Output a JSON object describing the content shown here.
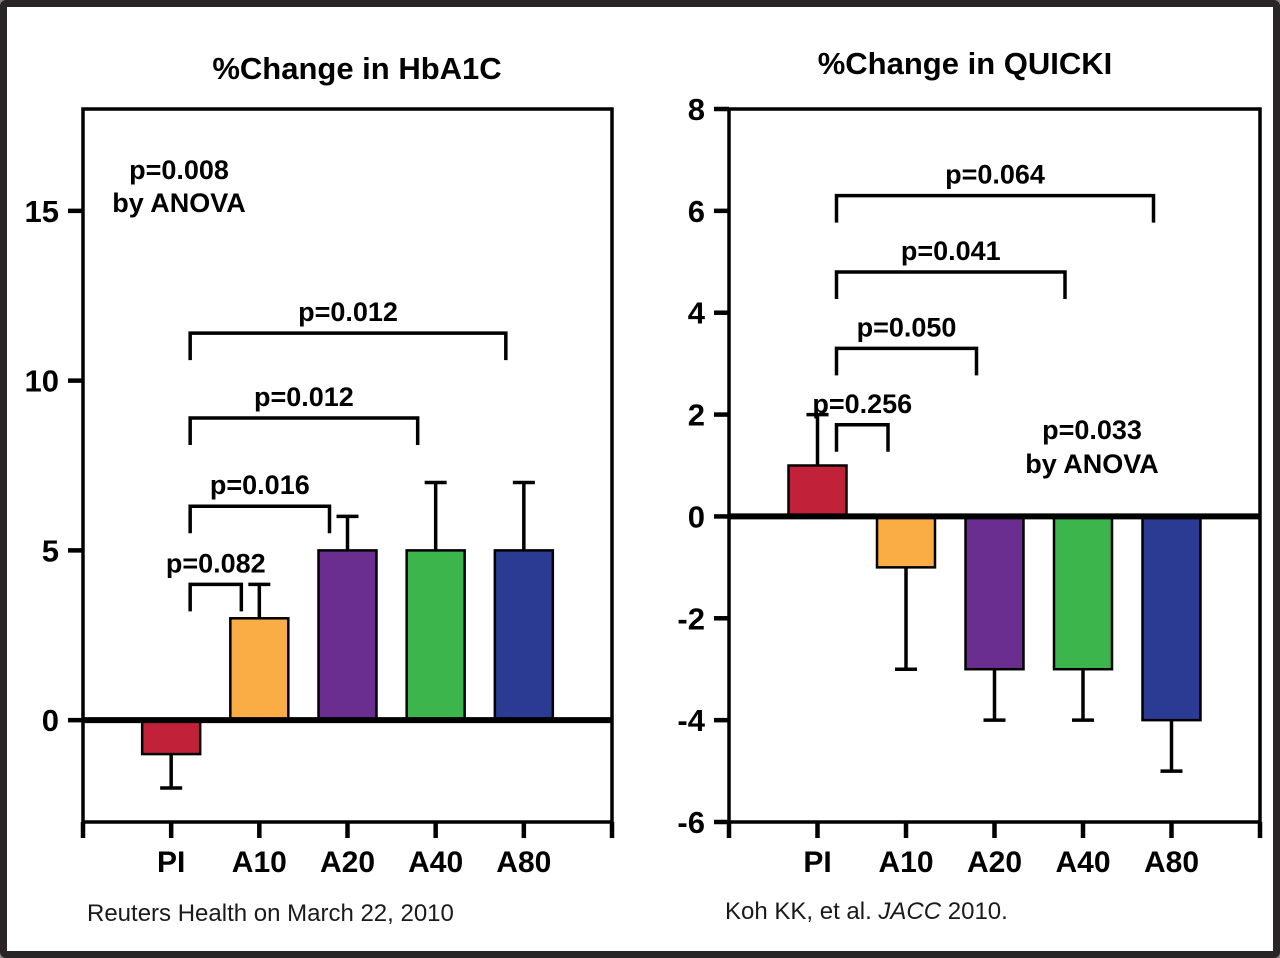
{
  "frame": {
    "background": "#ffffff",
    "border_color": "#292526"
  },
  "footers": {
    "left": "Reuters Health on March 22, 2010",
    "right_parts": [
      {
        "text": "Koh KK, et al. ",
        "italic": false
      },
      {
        "text": "JACC",
        "italic": true
      },
      {
        "text": " 2010.",
        "italic": false
      }
    ]
  },
  "chart_data": [
    {
      "type": "bar",
      "title": "%Change in HbA1C",
      "categories": [
        "PI",
        "A10",
        "A20",
        "A40",
        "A80"
      ],
      "values": [
        -1,
        3,
        5,
        5,
        5
      ],
      "errors": [
        1,
        1,
        1,
        2,
        2
      ],
      "bar_colors": [
        "#c2213a",
        "#faac45",
        "#6a2d90",
        "#3cb54c",
        "#2b3b94"
      ],
      "ylim": [
        -3,
        18
      ],
      "yticks": [
        0,
        5,
        10,
        15
      ],
      "grid": false,
      "legend": null,
      "xlabel": "",
      "ylabel": "",
      "anova_note": {
        "line1": "p=0.008",
        "line2": "by ANOVA"
      },
      "brackets": [
        {
          "label": "p=0.082",
          "from": 0,
          "to": 1,
          "y": 4.0
        },
        {
          "label": "p=0.016",
          "from": 0,
          "to": 2,
          "y": 6.3
        },
        {
          "label": "p=0.012",
          "from": 0,
          "to": 3,
          "y": 8.9
        },
        {
          "label": "p=0.012",
          "from": 0,
          "to": 4,
          "y": 11.4
        }
      ]
    },
    {
      "type": "bar",
      "title": "%Change in QUICKI",
      "categories": [
        "PI",
        "A10",
        "A20",
        "A40",
        "A80"
      ],
      "values": [
        1,
        -1,
        -3,
        -3,
        -4
      ],
      "errors": [
        1,
        2,
        1,
        1,
        1
      ],
      "bar_colors": [
        "#c2213a",
        "#faac45",
        "#6a2d90",
        "#3cb54c",
        "#2b3b94"
      ],
      "ylim": [
        -6,
        8
      ],
      "yticks": [
        8,
        6,
        4,
        2,
        0,
        -2,
        -4,
        -6
      ],
      "grid": false,
      "legend": null,
      "xlabel": "",
      "ylabel": "",
      "anova_note": {
        "line1": "p=0.033",
        "line2": "by ANOVA"
      },
      "brackets": [
        {
          "label": "p=0.256",
          "from": 0,
          "to": 1,
          "y": 1.8
        },
        {
          "label": "p=0.050",
          "from": 0,
          "to": 2,
          "y": 3.3
        },
        {
          "label": "p=0.041",
          "from": 0,
          "to": 3,
          "y": 4.8
        },
        {
          "label": "p=0.064",
          "from": 0,
          "to": 4,
          "y": 6.3
        }
      ]
    }
  ]
}
